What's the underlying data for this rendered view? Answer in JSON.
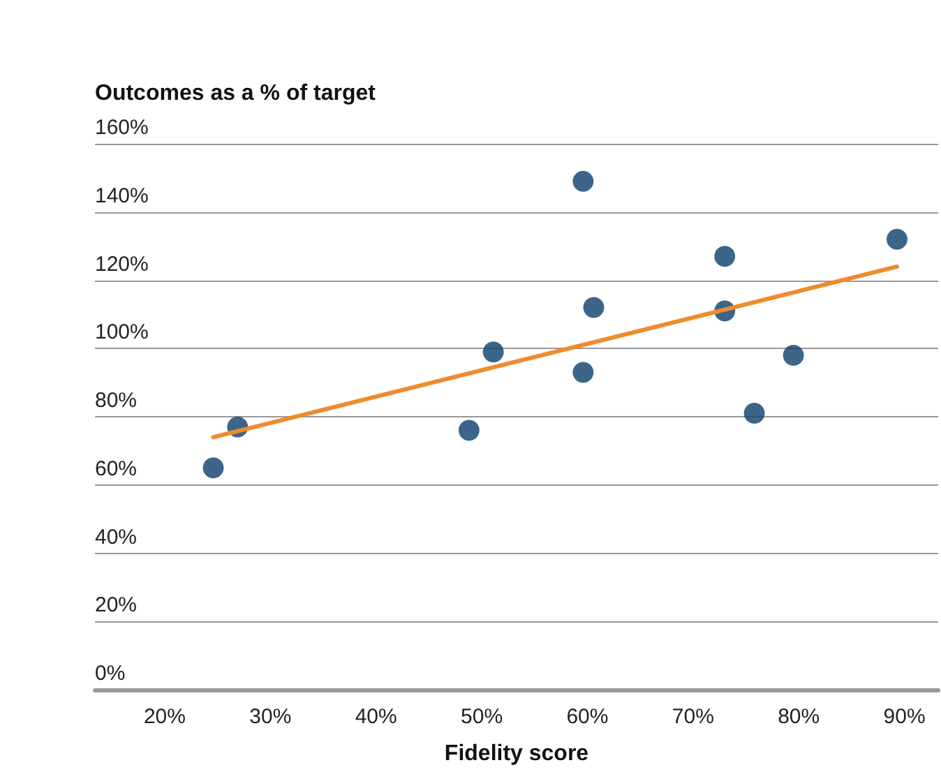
{
  "chart_data": {
    "type": "scatter",
    "xlabel": "Fidelity score",
    "ylabel": "Outcomes as a % of target",
    "xlim": [
      13.4,
      93.2
    ],
    "xticks": [
      {
        "value": 20,
        "label": "20%"
      },
      {
        "value": 30,
        "label": "30%"
      },
      {
        "value": 40,
        "label": "40%"
      },
      {
        "value": 50,
        "label": "50%"
      },
      {
        "value": 60,
        "label": "60%"
      },
      {
        "value": 70,
        "label": "70%"
      },
      {
        "value": 80,
        "label": "80%"
      },
      {
        "value": 90,
        "label": "90%"
      }
    ],
    "ylim": [
      0,
      160
    ],
    "yticks": [
      {
        "value": 0,
        "label": "0%"
      },
      {
        "value": 20,
        "label": "20%"
      },
      {
        "value": 40,
        "label": "40%"
      },
      {
        "value": 60,
        "label": "60%"
      },
      {
        "value": 80,
        "label": "80%"
      },
      {
        "value": 100,
        "label": "100%"
      },
      {
        "value": 120,
        "label": "120%"
      },
      {
        "value": 140,
        "label": "140%"
      },
      {
        "value": 160,
        "label": "160%"
      }
    ],
    "grid": "y",
    "marker": "circle",
    "series": [
      {
        "color": "#0d3f6b",
        "x": [
          24.6,
          26.9,
          48.8,
          51.1,
          59.6,
          59.6,
          60.6,
          73.0,
          73.0,
          75.8,
          79.5,
          89.3
        ],
        "values": [
          65,
          77,
          76,
          99,
          149,
          93,
          112,
          127,
          111,
          81,
          98,
          132
        ]
      },
      {
        "type": "line",
        "color": "#f08a2e",
        "line_style": "solid",
        "marker": "none",
        "x": [
          24.6,
          89.3
        ],
        "values": [
          74,
          124
        ]
      }
    ]
  }
}
